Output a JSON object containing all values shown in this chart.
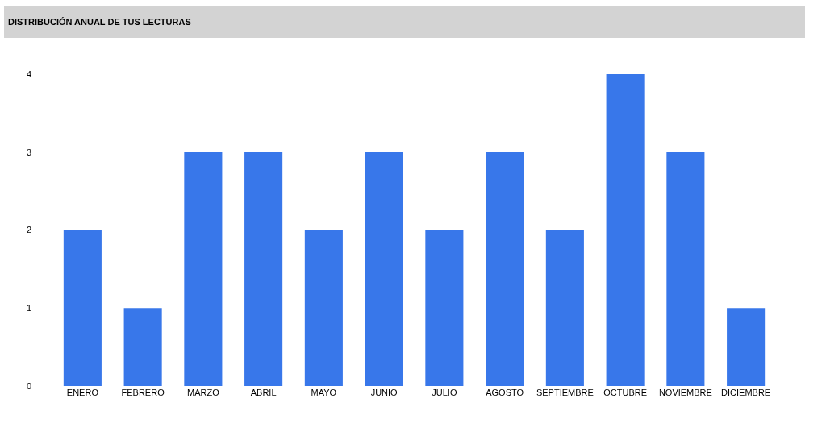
{
  "chart_data": {
    "type": "bar",
    "title": "DISTRIBUCIÓN ANUAL DE TUS LECTURAS",
    "categories": [
      "ENERO",
      "FEBRERO",
      "MARZO",
      "ABRIL",
      "MAYO",
      "JUNIO",
      "JULIO",
      "AGOSTO",
      "SEPTIEMBRE",
      "OCTUBRE",
      "NOVIEMBRE",
      "DICIEMBRE"
    ],
    "values": [
      2,
      1,
      3,
      3,
      2,
      3,
      2,
      3,
      2,
      4,
      3,
      1
    ],
    "color": "#3877ea",
    "ylim": [
      0,
      4
    ],
    "yticks": [
      0,
      1,
      2,
      3,
      4
    ],
    "grid": false,
    "legend": false
  }
}
